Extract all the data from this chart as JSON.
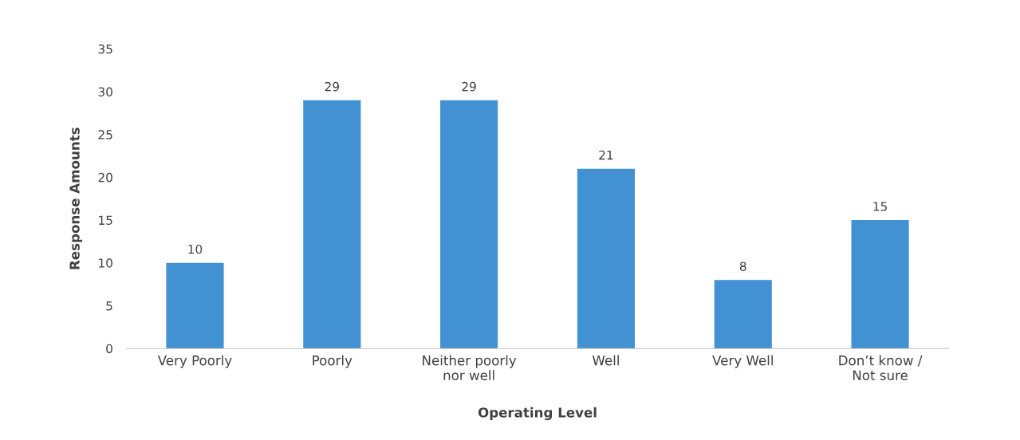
{
  "chart_data": {
    "type": "bar",
    "xlabel": "Operating Level",
    "ylabel": "Response Amounts",
    "categories": [
      "Very Poorly",
      "Poorly",
      "Neither poorly\nnor well",
      "Well",
      "Very Well",
      "Don’t know /\nNot sure"
    ],
    "values": [
      10,
      29,
      29,
      21,
      8,
      15
    ],
    "color": "#4292d3",
    "ylim": [
      0,
      35
    ],
    "yticks": [
      0,
      5,
      10,
      15,
      20,
      25,
      30,
      35
    ],
    "grid": false,
    "data_labels": true
  }
}
